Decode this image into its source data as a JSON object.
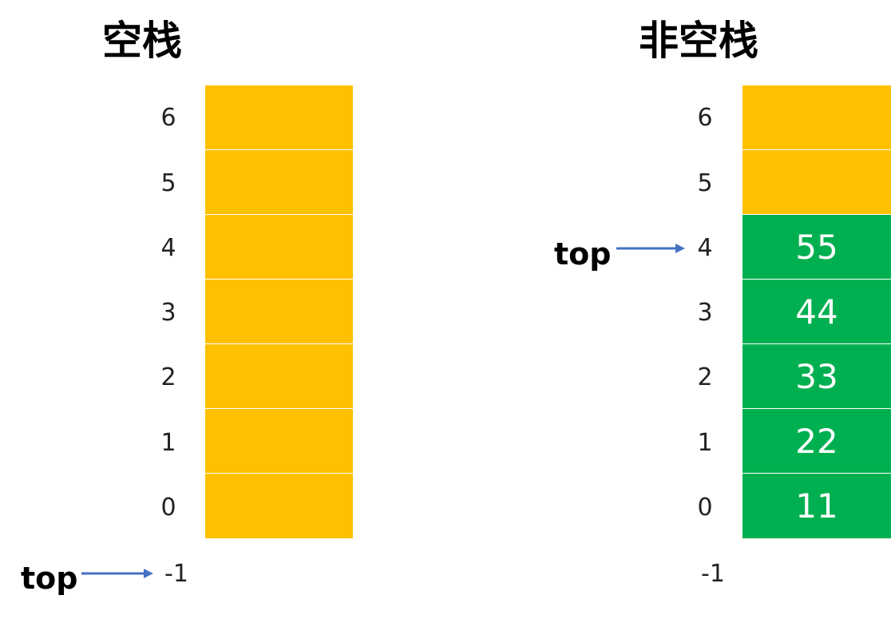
{
  "colors": {
    "empty_slot": "#FFC000",
    "filled_slot": "#00B050",
    "arrow": "#4472C4"
  },
  "empty_stack": {
    "title": "空栈",
    "indices": [
      "6",
      "5",
      "4",
      "3",
      "2",
      "1",
      "0",
      "-1"
    ],
    "cells": [
      "",
      "",
      "",
      "",
      "",
      "",
      ""
    ],
    "top_label": "top",
    "top_index": "-1"
  },
  "nonempty_stack": {
    "title": "非空栈",
    "indices": [
      "6",
      "5",
      "4",
      "3",
      "2",
      "1",
      "0",
      "-1"
    ],
    "cells": [
      "",
      "",
      "55",
      "44",
      "33",
      "22",
      "11"
    ],
    "top_label": "top",
    "top_index": "4"
  }
}
